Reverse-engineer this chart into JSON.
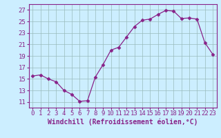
{
  "x": [
    0,
    1,
    2,
    3,
    4,
    5,
    6,
    7,
    8,
    9,
    10,
    11,
    12,
    13,
    14,
    15,
    16,
    17,
    18,
    19,
    20,
    21,
    22,
    23
  ],
  "y": [
    15.5,
    15.7,
    15.0,
    14.5,
    13.0,
    12.3,
    11.1,
    11.2,
    15.3,
    17.5,
    20.0,
    20.5,
    22.3,
    24.1,
    25.2,
    25.4,
    26.2,
    26.9,
    26.8,
    25.5,
    25.6,
    25.4,
    21.3,
    19.3
  ],
  "line_color": "#882288",
  "marker": "D",
  "marker_size": 2.5,
  "bg_color": "#cceeff",
  "grid_color": "#99bbbb",
  "xlabel": "Windchill (Refroidissement éolien,°C)",
  "xlim": [
    -0.5,
    23.5
  ],
  "ylim": [
    10,
    28
  ],
  "yticks": [
    11,
    13,
    15,
    17,
    19,
    21,
    23,
    25,
    27
  ],
  "xticks": [
    0,
    1,
    2,
    3,
    4,
    5,
    6,
    7,
    8,
    9,
    10,
    11,
    12,
    13,
    14,
    15,
    16,
    17,
    18,
    19,
    20,
    21,
    22,
    23
  ],
  "tick_color": "#882288",
  "label_color": "#882288",
  "font_size_ticks": 6.5,
  "font_size_label": 7
}
